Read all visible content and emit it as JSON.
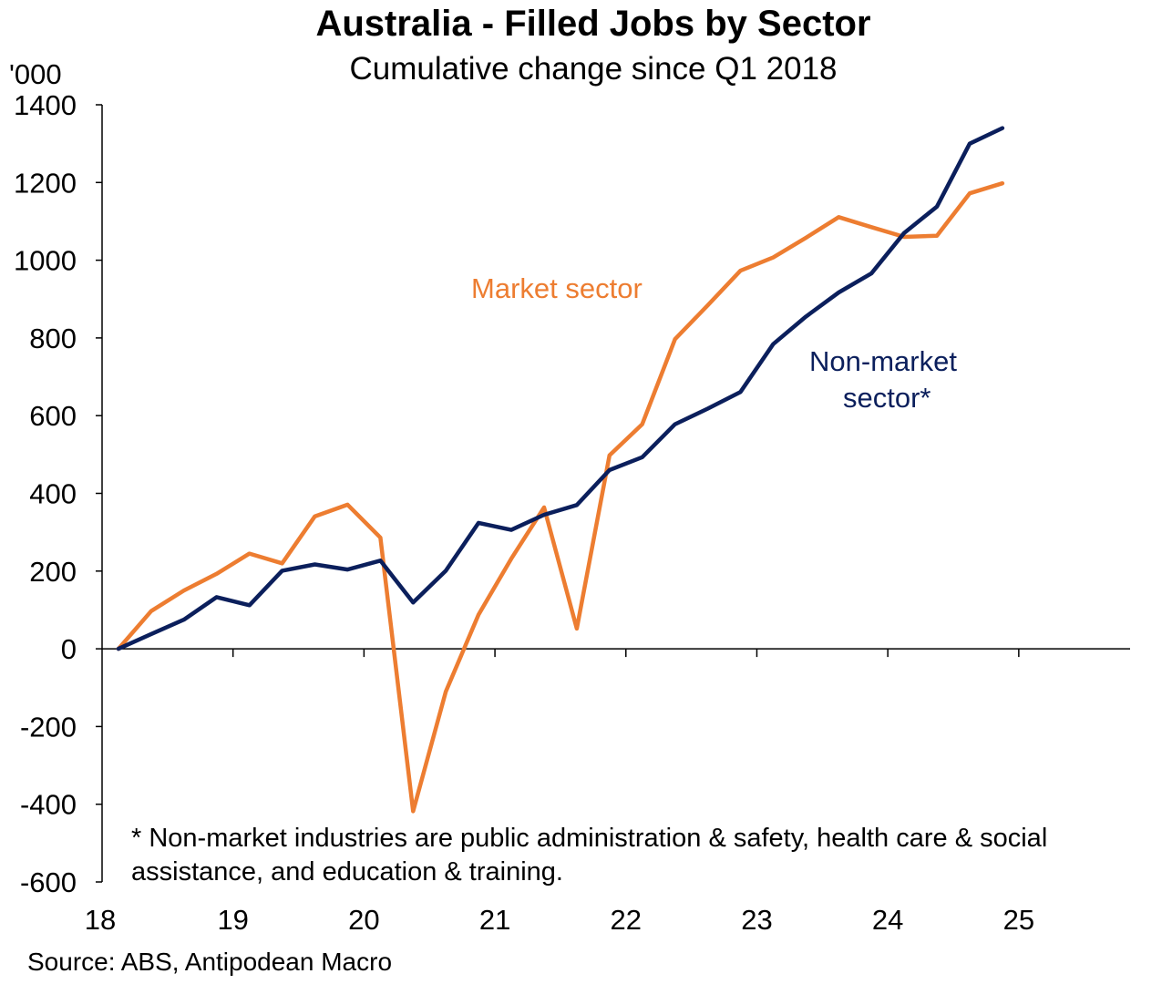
{
  "chart_data": {
    "type": "line",
    "title": "Australia - Filled Jobs by Sector",
    "subtitle": "Cumulative change since Q1 2018",
    "y_unit_label": "'000",
    "ylim": [
      -600,
      1400
    ],
    "y_ticks": [
      -600,
      -400,
      -200,
      0,
      200,
      400,
      600,
      800,
      1000,
      1200,
      1400
    ],
    "x_tick_labels": [
      "18",
      "19",
      "20",
      "21",
      "22",
      "23",
      "24",
      "25"
    ],
    "x_tick_years": [
      2018,
      2019,
      2020,
      2021,
      2022,
      2023,
      2024,
      2025
    ],
    "xlim": [
      2018,
      2025.85
    ],
    "grid": false,
    "legend": "inline labels",
    "x": [
      "2018-Q1",
      "2018-Q2",
      "2018-Q3",
      "2018-Q4",
      "2019-Q1",
      "2019-Q2",
      "2019-Q3",
      "2019-Q4",
      "2020-Q1",
      "2020-Q2",
      "2020-Q3",
      "2020-Q4",
      "2021-Q1",
      "2021-Q2",
      "2021-Q3",
      "2021-Q4",
      "2022-Q1",
      "2022-Q2",
      "2022-Q3",
      "2022-Q4",
      "2023-Q1",
      "2023-Q2",
      "2023-Q3",
      "2023-Q4",
      "2024-Q1",
      "2024-Q2",
      "2024-Q3",
      "2024-Q4"
    ],
    "series": [
      {
        "name": "Market sector",
        "color": "#ED7D31",
        "values": [
          0,
          97,
          150,
          193,
          245,
          220,
          341,
          371,
          286,
          -418,
          -110,
          88,
          232,
          364,
          52,
          498,
          578,
          797,
          884,
          973,
          1007,
          1058,
          1111,
          1085,
          1060,
          1063,
          1172,
          1198
        ]
      },
      {
        "name": "Non-market sector*",
        "color": "#0B1F5C",
        "values": [
          0,
          38,
          75,
          133,
          112,
          201,
          217,
          204,
          227,
          119,
          201,
          324,
          306,
          345,
          370,
          460,
          493,
          578,
          618,
          661,
          784,
          855,
          917,
          966,
          1070,
          1138,
          1300,
          1340
        ]
      }
    ],
    "annotations": {
      "market_label": "Market sector",
      "nonmarket_label_line1": "Non-market",
      "nonmarket_label_line2": "sector*",
      "footnote_line1": "* Non-market industries are public administration & safety, health care & social",
      "footnote_line2": "assistance, and education & training."
    },
    "source": "Source: ABS, Antipodean Macro"
  }
}
